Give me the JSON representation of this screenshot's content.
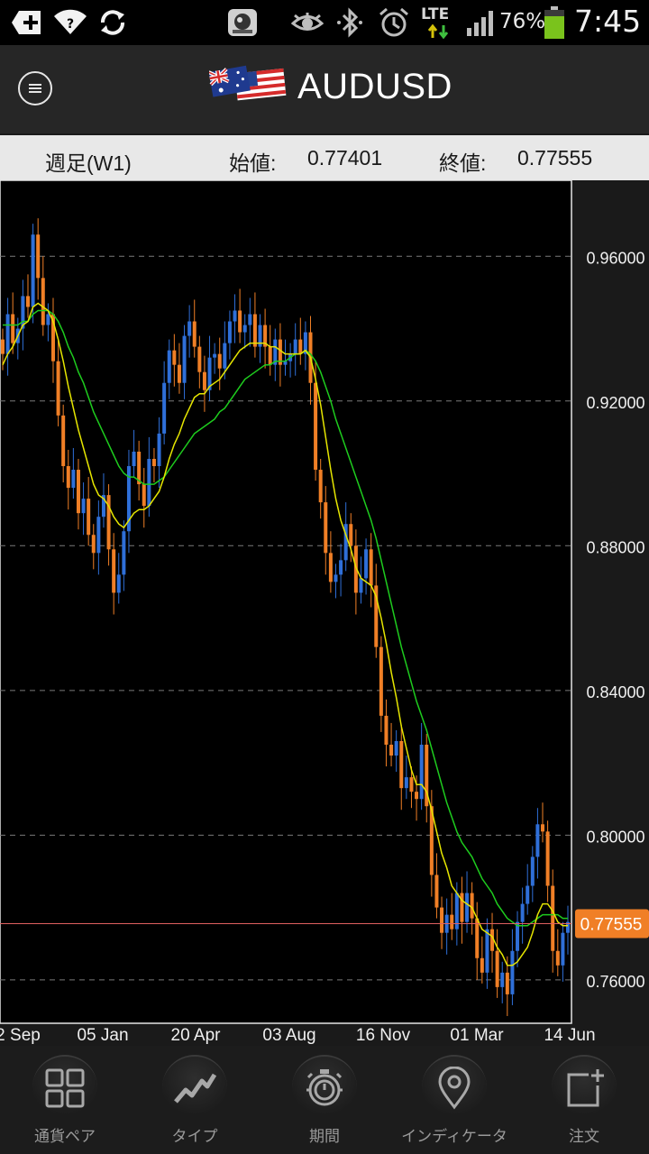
{
  "status_bar": {
    "battery": "76%",
    "time": "7:45",
    "network": "LTE"
  },
  "header": {
    "symbol": "AUDUSD",
    "menu_icon": "hamburger-icon",
    "flag_icon": "aud-usd-flag-icon"
  },
  "info_bar": {
    "timeframe": "週足(W1)",
    "open_label": "始値:",
    "open_value": "0.77401",
    "close_label": "終値:",
    "close_value": "0.77555"
  },
  "chart_data": {
    "type": "candlestick",
    "y_ticks": [
      "0.96000",
      "0.92000",
      "0.88000",
      "0.84000",
      "0.80000",
      "0.76000"
    ],
    "x_ticks": [
      "2 Sep",
      "05 Jan",
      "20 Apr",
      "03 Aug",
      "16 Nov",
      "01 Mar",
      "14 Jun"
    ],
    "current_price": "0.77555",
    "ylim": [
      0.748,
      0.981
    ],
    "colors": {
      "up": "#2f6fd8",
      "down": "#f07f26",
      "ma_fast": "#e6e600",
      "ma_slow": "#1ecc1e",
      "price_line": "#e06060"
    },
    "closes": [
      0.933,
      0.944,
      0.936,
      0.94,
      0.949,
      0.946,
      0.966,
      0.954,
      0.941,
      0.944,
      0.931,
      0.916,
      0.902,
      0.896,
      0.901,
      0.889,
      0.893,
      0.883,
      0.878,
      0.888,
      0.894,
      0.879,
      0.867,
      0.872,
      0.884,
      0.902,
      0.906,
      0.897,
      0.891,
      0.904,
      0.902,
      0.911,
      0.925,
      0.934,
      0.93,
      0.925,
      0.938,
      0.942,
      0.935,
      0.928,
      0.923,
      0.932,
      0.933,
      0.929,
      0.936,
      0.942,
      0.945,
      0.939,
      0.941,
      0.944,
      0.935,
      0.941,
      0.935,
      0.93,
      0.937,
      0.93,
      0.931,
      0.933,
      0.937,
      0.933,
      0.939,
      0.925,
      0.901,
      0.892,
      0.878,
      0.87,
      0.872,
      0.876,
      0.886,
      0.88,
      0.867,
      0.871,
      0.879,
      0.869,
      0.852,
      0.833,
      0.825,
      0.822,
      0.826,
      0.813,
      0.816,
      0.812,
      0.81,
      0.825,
      0.808,
      0.789,
      0.78,
      0.773,
      0.778,
      0.774,
      0.784,
      0.776,
      0.784,
      0.777,
      0.766,
      0.762,
      0.774,
      0.768,
      0.758,
      0.762,
      0.756,
      0.768,
      0.776,
      0.781,
      0.786,
      0.794,
      0.803,
      0.801,
      0.786,
      0.768,
      0.764,
      0.773,
      0.776
    ],
    "ma_fast": [
      0.93,
      0.933,
      0.935,
      0.938,
      0.941,
      0.942,
      0.946,
      0.947,
      0.946,
      0.945,
      0.942,
      0.937,
      0.931,
      0.924,
      0.918,
      0.912,
      0.907,
      0.902,
      0.897,
      0.894,
      0.893,
      0.891,
      0.888,
      0.886,
      0.885,
      0.887,
      0.889,
      0.89,
      0.89,
      0.891,
      0.893,
      0.895,
      0.899,
      0.904,
      0.908,
      0.911,
      0.915,
      0.918,
      0.921,
      0.922,
      0.922,
      0.924,
      0.925,
      0.926,
      0.928,
      0.93,
      0.932,
      0.934,
      0.935,
      0.936,
      0.936,
      0.936,
      0.936,
      0.935,
      0.935,
      0.934,
      0.933,
      0.933,
      0.933,
      0.933,
      0.934,
      0.932,
      0.926,
      0.919,
      0.91,
      0.901,
      0.893,
      0.887,
      0.883,
      0.879,
      0.874,
      0.871,
      0.87,
      0.869,
      0.866,
      0.86,
      0.853,
      0.845,
      0.838,
      0.83,
      0.824,
      0.818,
      0.814,
      0.814,
      0.812,
      0.807,
      0.801,
      0.795,
      0.791,
      0.786,
      0.784,
      0.782,
      0.781,
      0.78,
      0.777,
      0.774,
      0.773,
      0.772,
      0.769,
      0.767,
      0.764,
      0.764,
      0.765,
      0.767,
      0.769,
      0.773,
      0.778,
      0.781,
      0.781,
      0.779,
      0.776,
      0.775,
      0.775
    ],
    "ma_slow": [
      0.941,
      0.941,
      0.941,
      0.941,
      0.942,
      0.942,
      0.944,
      0.945,
      0.945,
      0.945,
      0.944,
      0.942,
      0.939,
      0.935,
      0.932,
      0.928,
      0.925,
      0.921,
      0.917,
      0.914,
      0.911,
      0.908,
      0.905,
      0.902,
      0.9,
      0.899,
      0.899,
      0.898,
      0.897,
      0.897,
      0.897,
      0.898,
      0.899,
      0.901,
      0.903,
      0.905,
      0.907,
      0.909,
      0.911,
      0.912,
      0.913,
      0.914,
      0.915,
      0.917,
      0.918,
      0.92,
      0.922,
      0.924,
      0.926,
      0.927,
      0.928,
      0.929,
      0.93,
      0.93,
      0.931,
      0.931,
      0.931,
      0.932,
      0.933,
      0.933,
      0.934,
      0.933,
      0.931,
      0.928,
      0.924,
      0.92,
      0.915,
      0.911,
      0.907,
      0.903,
      0.899,
      0.895,
      0.891,
      0.887,
      0.882,
      0.876,
      0.87,
      0.864,
      0.858,
      0.852,
      0.847,
      0.842,
      0.837,
      0.833,
      0.829,
      0.824,
      0.819,
      0.814,
      0.809,
      0.805,
      0.801,
      0.798,
      0.796,
      0.794,
      0.791,
      0.788,
      0.786,
      0.784,
      0.781,
      0.779,
      0.777,
      0.776,
      0.775,
      0.775,
      0.775,
      0.776,
      0.777,
      0.778,
      0.778,
      0.778,
      0.778,
      0.777,
      0.777
    ]
  },
  "toolbar": {
    "items": [
      {
        "label": "通貨ペア",
        "icon": "grid-icon"
      },
      {
        "label": "タイプ",
        "icon": "chart-type-icon"
      },
      {
        "label": "期間",
        "icon": "timer-icon"
      },
      {
        "label": "インディケータ",
        "icon": "location-pin-icon"
      },
      {
        "label": "注文",
        "icon": "new-order-icon"
      }
    ]
  }
}
